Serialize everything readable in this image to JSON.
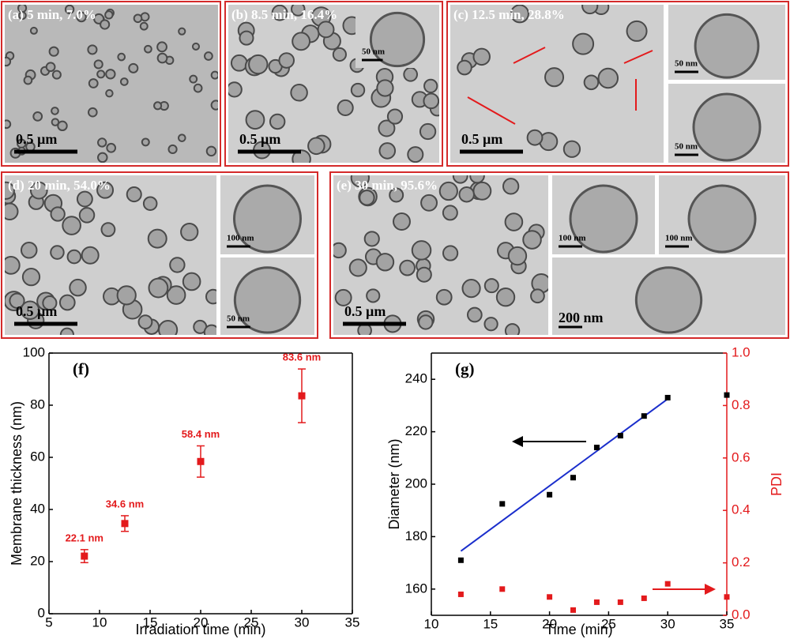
{
  "panels": [
    {
      "label": "(a) 5 min, 7.0%",
      "scale_bars": [
        "0.5 µm"
      ]
    },
    {
      "label": "(b) 8.5 min, 16.4%",
      "scale_bars": [
        "0.5 µm",
        "50 nm"
      ]
    },
    {
      "label": "(c) 12.5 min, 28.8%",
      "scale_bars": [
        "0.5 µm",
        "50 nm",
        "50 nm"
      ]
    },
    {
      "label": "(d) 20 min, 54.0%",
      "scale_bars": [
        "0.5 µm",
        "100 nm",
        "50 nm"
      ]
    },
    {
      "label": "(e) 30 min, 95.6%",
      "scale_bars": [
        "0.5 µm",
        "100 nm",
        "100 nm",
        "200 nm"
      ]
    }
  ],
  "chart_data": [
    {
      "type": "scatter",
      "annotation": "(f)",
      "xlabel": "Irradiation time (min)",
      "ylabel": "Membrane thickness (nm)",
      "x": [
        8.5,
        12.5,
        20,
        30
      ],
      "series": [
        {
          "color": "#e31a1c",
          "values": [
            22.1,
            34.6,
            58.4,
            83.6
          ],
          "errors": [
            2.5,
            3,
            6,
            10.3
          ],
          "value_labels": [
            "22.1 nm",
            "34.6 nm",
            "58.4 nm",
            "83.6 nm"
          ]
        }
      ],
      "xlim": [
        5,
        35
      ],
      "xticks": [
        5,
        10,
        15,
        20,
        25,
        30,
        35
      ],
      "ylim": [
        0,
        100
      ],
      "yticks": [
        0,
        20,
        40,
        60,
        80,
        100
      ]
    },
    {
      "type": "scatter",
      "annotation": "(g)",
      "xlabel": "Time (min)",
      "ylabel": "Diameter (nm)",
      "y2label": "PDI",
      "x": [
        12.5,
        16,
        20,
        22,
        24,
        26,
        28,
        30,
        35
      ],
      "series": [
        {
          "color": "#000000",
          "values": [
            171,
            192.5,
            196,
            202.5,
            214,
            218.5,
            226,
            233,
            234
          ]
        },
        {
          "color": "#e31a1c",
          "axis": "y2",
          "values": [
            0.08,
            0.1,
            0.07,
            0.02,
            0.05,
            0.05,
            0.065,
            0.12,
            0.07
          ]
        }
      ],
      "fit": {
        "color": "#1a2ecc",
        "x": [
          12.5,
          30
        ],
        "values": [
          174.5,
          232.5
        ]
      },
      "xlim": [
        10,
        35
      ],
      "xticks": [
        10,
        15,
        20,
        25,
        30,
        35
      ],
      "ylim": [
        150,
        250
      ],
      "yticks": [
        160,
        180,
        200,
        220,
        240
      ],
      "y2lim": [
        0,
        1
      ],
      "y2ticks": [
        {
          "value": 0,
          "label": "0.0"
        },
        {
          "value": 0.2,
          "label": "0.2"
        },
        {
          "value": 0.4,
          "label": "0.4"
        },
        {
          "value": 0.6,
          "label": "0.6"
        },
        {
          "value": 0.8,
          "label": "0.8"
        },
        {
          "value": 1,
          "label": "1.0"
        }
      ]
    }
  ]
}
